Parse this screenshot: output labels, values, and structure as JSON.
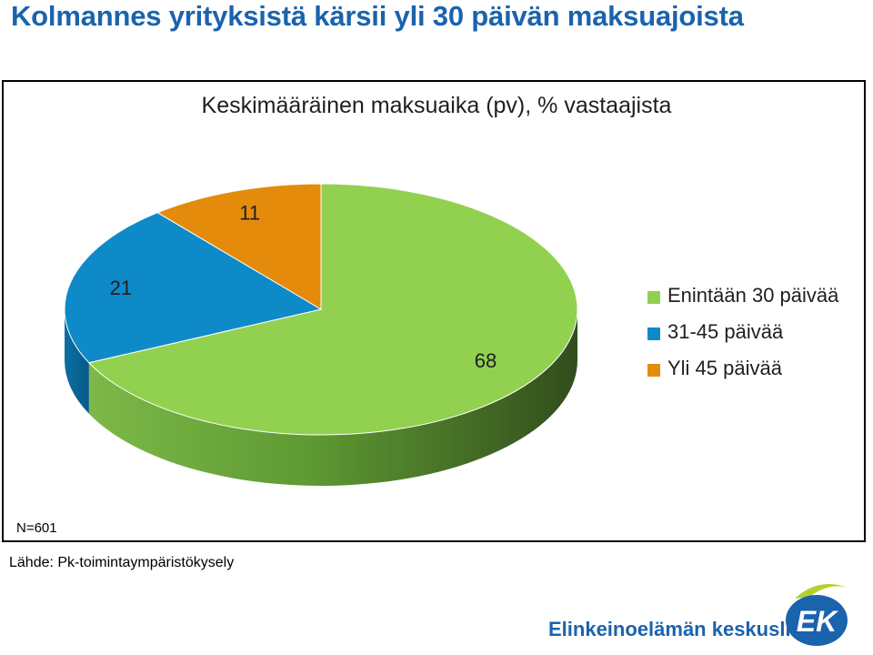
{
  "header": {
    "title": "Kolmannes yrityksistä kärsii yli 30 päivän maksuajoista"
  },
  "notes": {
    "sample": "N=601",
    "source": "Lähde: Pk-toimintaympäristökysely"
  },
  "footer": {
    "org_name": "Elinkeinoelämän keskusliitto",
    "logo_text": "EK"
  },
  "colors": {
    "title": "#1a63ad",
    "green": "#92d050",
    "blue": "#0f8ac9",
    "orange": "#e48b0b"
  },
  "chart_data": {
    "type": "pie",
    "title": "Keskimääräinen maksuaika (pv), % vastaajista",
    "labels": [
      "Enintään 30 päivää",
      "31-45 päivää",
      "Yli 45 päivää"
    ],
    "values": [
      68,
      21,
      11
    ],
    "colors": [
      "#92d050",
      "#0f8ac9",
      "#e48b0b"
    ],
    "legend_position": "right",
    "style": "3d"
  }
}
